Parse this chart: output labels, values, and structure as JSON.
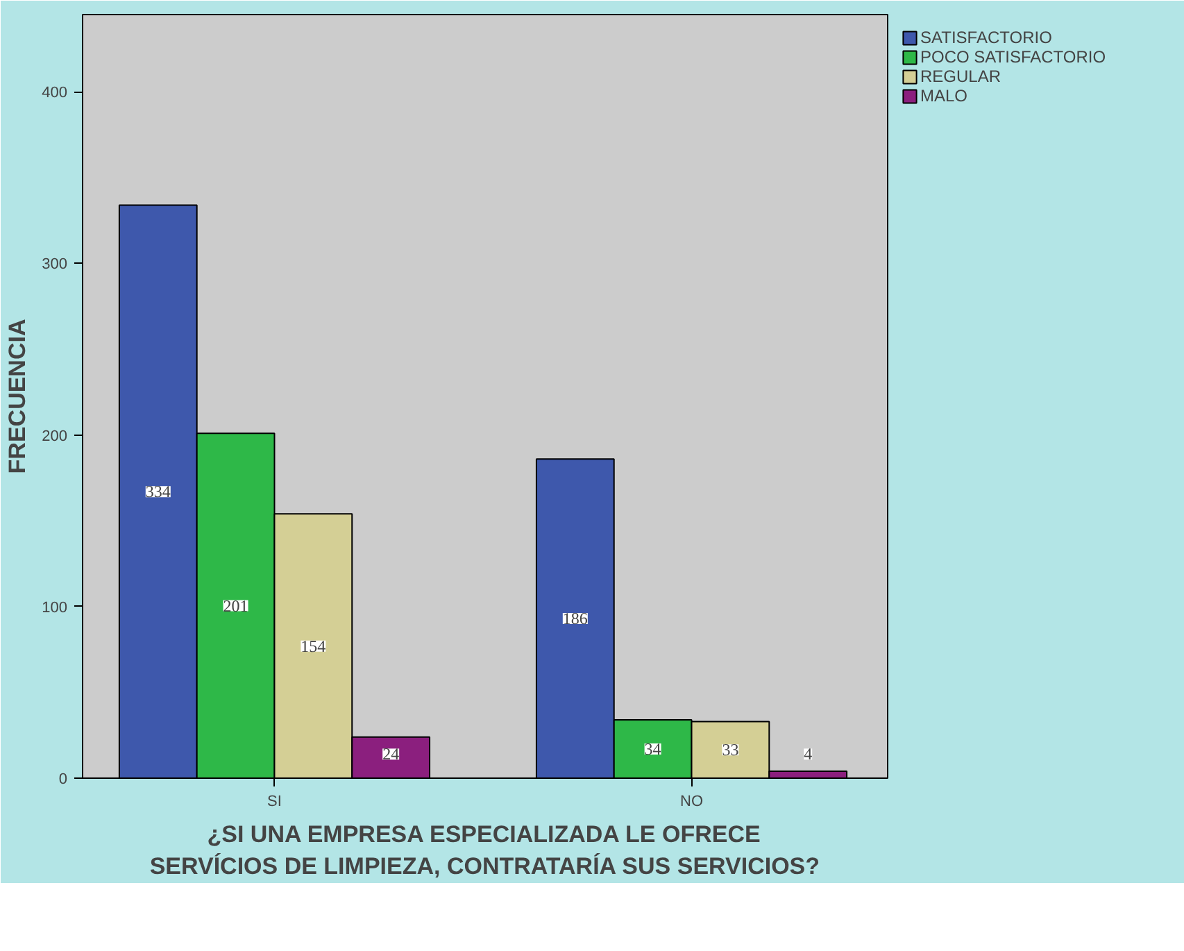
{
  "chart_data": {
    "type": "bar",
    "xlabel": "¿SI UNA EMPRESA ESPECIALIZADA LE OFRECE\nSERVÍCIOS DE LIMPIEZA, CONTRATARÍA SUS SERVICIOS?",
    "ylabel": "FRECUENCIA",
    "categories": [
      "SI",
      "NO"
    ],
    "series": [
      {
        "name": "SATISFACTORIO",
        "color": "#3e58ac",
        "values": [
          334,
          186
        ]
      },
      {
        "name": "POCO SATISFACTORIO",
        "color": "#2eb848",
        "values": [
          201,
          34
        ]
      },
      {
        "name": "REGULAR",
        "color": "#d4cf95",
        "values": [
          154,
          33
        ]
      },
      {
        "name": "MALO",
        "color": "#8b1f7e",
        "values": [
          24,
          4
        ]
      }
    ],
    "ylim": [
      0,
      445
    ],
    "yticks": [
      0,
      100,
      200,
      300,
      400
    ],
    "grid": false,
    "legend": "top right",
    "data_labels": true
  }
}
